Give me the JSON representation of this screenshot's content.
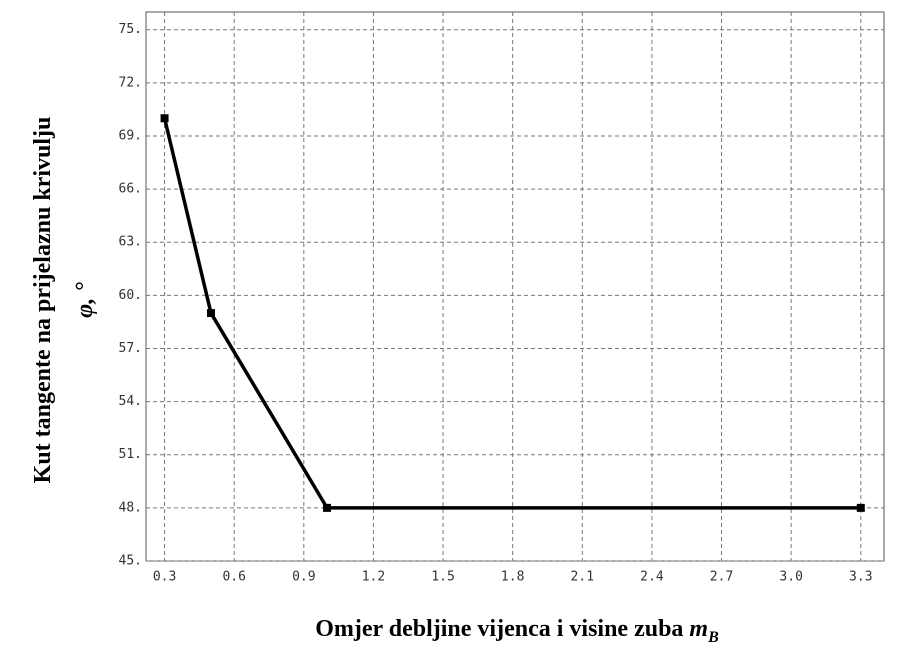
{
  "chart_data": {
    "type": "line",
    "ylabel": [
      "Kut tangente na prijelaznu krivulju",
      "φ, °"
    ],
    "xlabel": "Omjer debljine vijenca i visine zuba",
    "xlabel_symbol": "m",
    "xlabel_subscript": "B",
    "x": [
      0.3,
      0.5,
      1.0,
      3.3
    ],
    "series": [
      {
        "color": "#000000",
        "values": [
          70,
          59,
          48,
          48
        ]
      }
    ],
    "xlim": [
      0.22,
      3.4
    ],
    "ylim": [
      45,
      76
    ],
    "xticks": [
      0.3,
      0.6,
      0.9,
      1.2,
      1.5,
      1.8,
      2.1,
      2.4,
      2.7,
      {
        "value": 3,
        "label": "3.0"
      },
      3.3
    ],
    "yticks": [
      {
        "value": 45,
        "label": "45."
      },
      {
        "value": 48,
        "label": "48."
      },
      {
        "value": 51,
        "label": "51."
      },
      {
        "value": 54,
        "label": "54."
      },
      {
        "value": 57,
        "label": "57."
      },
      {
        "value": 60,
        "label": "60."
      },
      {
        "value": 63,
        "label": "63."
      },
      {
        "value": 66,
        "label": "66."
      },
      {
        "value": 69,
        "label": "69."
      },
      {
        "value": 72,
        "label": "72."
      },
      {
        "value": 75,
        "label": "75."
      }
    ],
    "grid": true
  }
}
